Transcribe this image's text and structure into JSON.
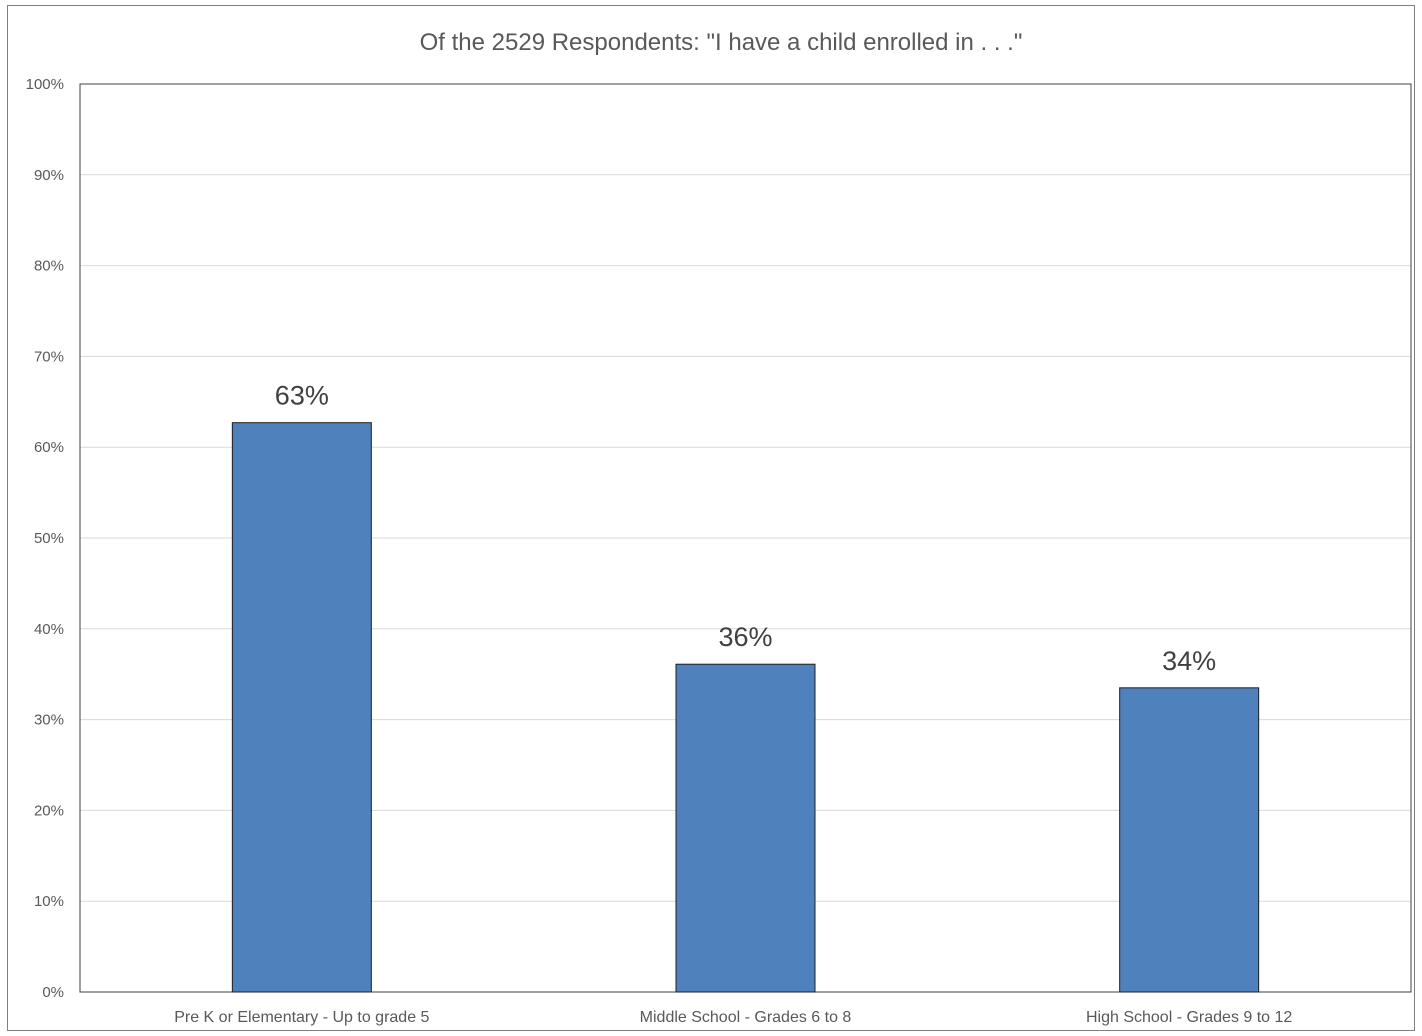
{
  "chart_data": {
    "type": "bar",
    "title": "Of the 2529 Respondents:  \"I have a child enrolled in . . .\"",
    "xlabel": "",
    "ylabel": "",
    "categories": [
      "Pre K or Elementary - Up to grade 5",
      "Middle School - Grades 6 to 8",
      "High School - Grades 9 to 12"
    ],
    "values": [
      0.627,
      0.361,
      0.335
    ],
    "data_labels": [
      "63%",
      "36%",
      "34%"
    ],
    "ylim": [
      0,
      1
    ],
    "yticks": [
      0,
      0.1,
      0.2,
      0.3,
      0.4,
      0.5,
      0.6,
      0.7,
      0.8,
      0.9,
      1.0
    ],
    "ytick_labels": [
      "0%",
      "10%",
      "20%",
      "30%",
      "40%",
      "50%",
      "60%",
      "70%",
      "80%",
      "90%",
      "100%"
    ],
    "grid": true,
    "legend": "none",
    "bar_color": "#4f81bd"
  }
}
